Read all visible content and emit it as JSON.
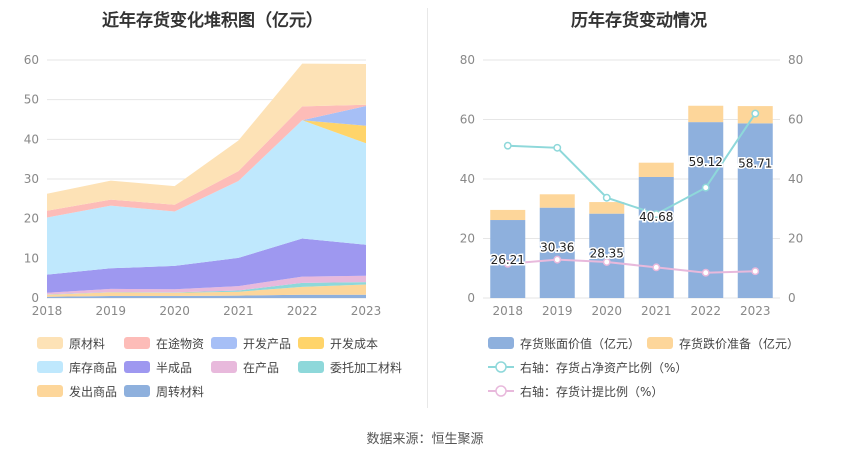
{
  "source": "数据来源：恒生聚源",
  "colors": {
    "grid": "#e6e6e6",
    "axis_text": "#888888"
  },
  "chart_data": [
    {
      "type": "area",
      "title": "近年存货变化堆积图（亿元）",
      "stacked": true,
      "x": [
        "2018",
        "2019",
        "2020",
        "2021",
        "2022",
        "2023"
      ],
      "ylim": [
        0,
        60
      ],
      "yticks": [
        0,
        10,
        20,
        30,
        40,
        50,
        60
      ],
      "legend_placement": "bottom",
      "legend_order": [
        "原材料",
        "在途物资",
        "开发产品",
        "开发成本",
        "库存商品",
        "半成品",
        "在产品",
        "委托加工材料",
        "发出商品",
        "周转材料"
      ],
      "series": [
        {
          "name": "周转材料",
          "color": "#8eb0dd",
          "values": [
            0.3,
            0.5,
            0.5,
            0.6,
            0.8,
            0.8
          ]
        },
        {
          "name": "发出商品",
          "color": "#fdd69a",
          "values": [
            0.5,
            0.9,
            0.8,
            1.0,
            2.0,
            2.6
          ]
        },
        {
          "name": "委托加工材料",
          "color": "#8ed8da",
          "values": [
            0.1,
            0.1,
            0.1,
            0.3,
            1.0,
            0.6
          ]
        },
        {
          "name": "在产品",
          "color": "#e8b9dc",
          "values": [
            0.4,
            0.8,
            0.8,
            1.1,
            1.6,
            1.6
          ]
        },
        {
          "name": "半成品",
          "color": "#9e98f0",
          "values": [
            4.6,
            5.2,
            5.9,
            7.1,
            9.6,
            7.8
          ]
        },
        {
          "name": "库存商品",
          "color": "#bfe8fd",
          "values": [
            14.4,
            15.8,
            13.7,
            19.4,
            29.8,
            25.6
          ]
        },
        {
          "name": "开发成本",
          "color": "#ffd46a",
          "values": [
            0,
            0,
            0,
            0,
            0,
            4.4
          ]
        },
        {
          "name": "开发产品",
          "color": "#a6bff6",
          "values": [
            0,
            0,
            0,
            0,
            0,
            5.0
          ]
        },
        {
          "name": "在途物资",
          "color": "#fdbcb8",
          "values": [
            1.7,
            1.5,
            1.7,
            2.5,
            3.5,
            0.3
          ]
        },
        {
          "name": "原材料",
          "color": "#fde2b6",
          "values": [
            4.3,
            4.8,
            4.7,
            7.7,
            10.8,
            10.3
          ]
        }
      ]
    },
    {
      "type": "bar",
      "title": "历年存货变动情况",
      "stacked": true,
      "categories": [
        "2018",
        "2019",
        "2020",
        "2021",
        "2022",
        "2023"
      ],
      "ylim": [
        0,
        80
      ],
      "yticks": [
        0,
        20,
        40,
        60,
        80
      ],
      "y2lim": [
        0,
        80
      ],
      "y2ticks": [
        0,
        20,
        40,
        60,
        80
      ],
      "legend_placement": "bottom",
      "series": [
        {
          "name": "存货账面价值（亿元）",
          "color": "#8eb0dd",
          "values": [
            26.21,
            30.36,
            28.35,
            40.68,
            59.12,
            58.71
          ],
          "labels": [
            "26.21",
            "30.36",
            "28.35",
            "40.68",
            "59.12",
            "58.71"
          ]
        },
        {
          "name": "存货跌价准备（亿元）",
          "color": "#fdd69a",
          "values": [
            3.4,
            4.5,
            3.9,
            4.8,
            5.5,
            5.8
          ]
        },
        {
          "name": "右轴：存货占净资产比例（%）",
          "type": "line",
          "axis": "right",
          "color": "#8ed8da",
          "values": [
            51.2,
            50.5,
            33.7,
            28.2,
            37.1,
            62.0
          ]
        },
        {
          "name": "右轴：存货计提比例（%）",
          "type": "line",
          "axis": "right",
          "color": "#e8b9dc",
          "values": [
            11.5,
            12.9,
            12.1,
            10.3,
            8.5,
            9.0
          ]
        }
      ]
    }
  ]
}
